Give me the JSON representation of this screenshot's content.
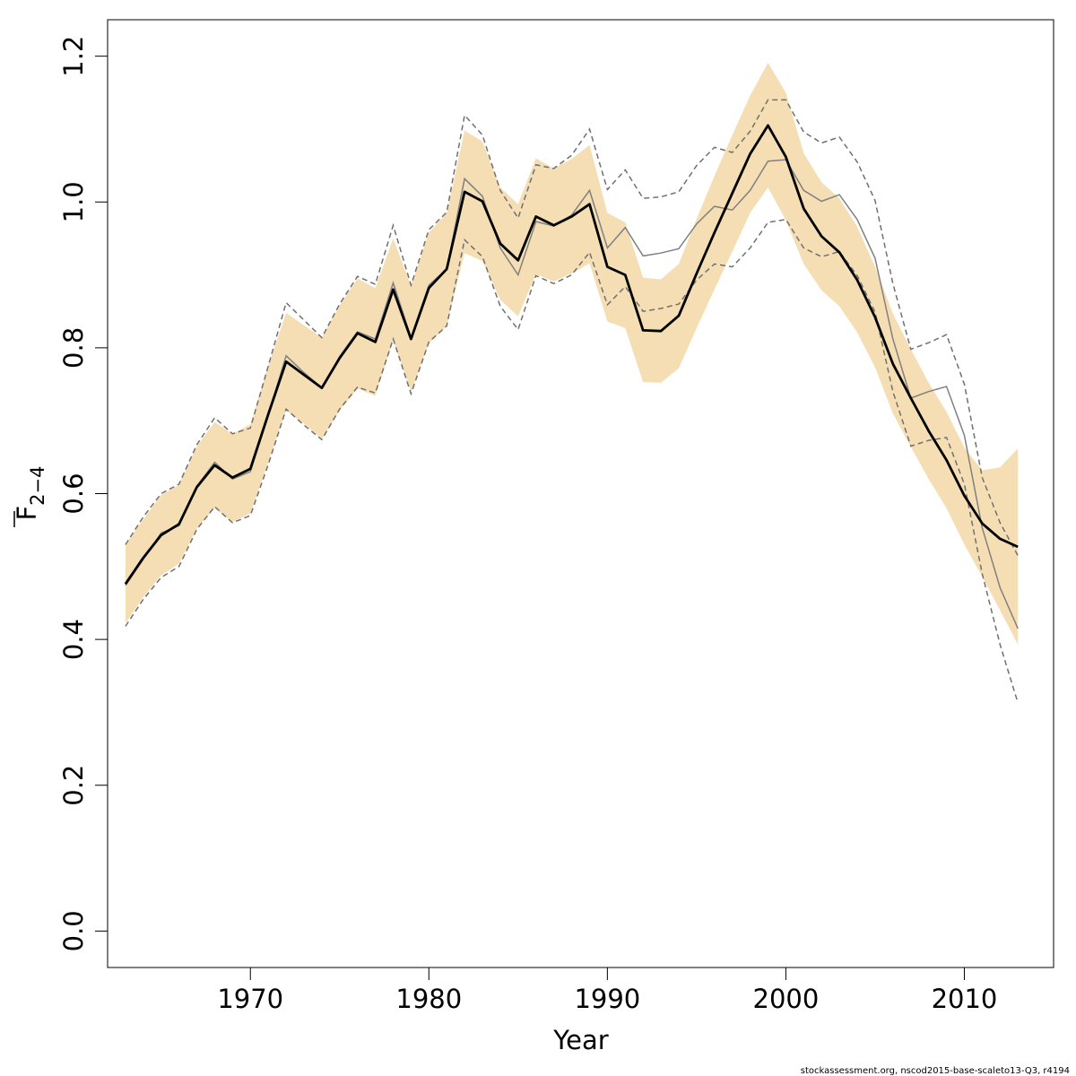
{
  "chart_data": {
    "type": "line",
    "title": "",
    "xlabel": "Year",
    "ylabel": {
      "main": "F",
      "subscript": "2−4"
    },
    "xlim": [
      1962,
      2015
    ],
    "ylim": [
      -0.05,
      1.25
    ],
    "x_ticks": [
      1970,
      1980,
      1990,
      2000,
      2010
    ],
    "y_ticks": [
      0.0,
      0.2,
      0.4,
      0.6,
      0.8,
      1.0,
      1.2
    ],
    "y_tick_labels": [
      "0.0",
      "0.2",
      "0.4",
      "0.6",
      "0.8",
      "1.0",
      "1.2"
    ],
    "colors": {
      "band": "#f5deb3",
      "estimate": "#000000",
      "comparison": "#808080",
      "comparison_ci": "#707070"
    },
    "years": [
      1963,
      1964,
      1965,
      1966,
      1967,
      1968,
      1969,
      1970,
      1971,
      1972,
      1973,
      1974,
      1975,
      1976,
      1977,
      1978,
      1979,
      1980,
      1981,
      1982,
      1983,
      1984,
      1985,
      1986,
      1987,
      1988,
      1989,
      1990,
      1991,
      1992,
      1993,
      1994,
      1995,
      1996,
      1997,
      1998,
      1999,
      2000,
      2001,
      2002,
      2003,
      2004,
      2005,
      2006,
      2007,
      2008,
      2009,
      2010,
      2011,
      2012,
      2013
    ],
    "series": [
      {
        "role": "confidence-band",
        "lower": [
          0.422,
          0.458,
          0.488,
          0.504,
          0.552,
          0.58,
          0.561,
          0.573,
          0.643,
          0.714,
          0.696,
          0.675,
          0.714,
          0.744,
          0.734,
          0.81,
          0.74,
          0.806,
          0.83,
          0.93,
          0.919,
          0.866,
          0.843,
          0.901,
          0.891,
          0.902,
          0.916,
          0.836,
          0.827,
          0.753,
          0.752,
          0.772,
          0.827,
          0.88,
          0.932,
          0.985,
          1.02,
          0.975,
          0.915,
          0.879,
          0.857,
          0.821,
          0.773,
          0.71,
          0.664,
          0.62,
          0.58,
          0.53,
          0.486,
          0.44,
          0.393
        ],
        "upper": [
          0.53,
          0.565,
          0.598,
          0.612,
          0.665,
          0.698,
          0.682,
          0.695,
          0.775,
          0.848,
          0.831,
          0.814,
          0.858,
          0.895,
          0.882,
          0.95,
          0.885,
          0.958,
          0.985,
          1.098,
          1.083,
          1.02,
          0.997,
          1.06,
          1.046,
          1.059,
          1.078,
          0.985,
          0.972,
          0.896,
          0.894,
          0.915,
          0.977,
          1.036,
          1.092,
          1.146,
          1.191,
          1.15,
          1.067,
          1.027,
          1.005,
          0.966,
          0.911,
          0.847,
          0.798,
          0.752,
          0.712,
          0.663,
          0.632,
          0.636,
          0.662
        ]
      },
      {
        "role": "estimate",
        "values": [
          0.476,
          0.512,
          0.543,
          0.558,
          0.609,
          0.639,
          0.622,
          0.634,
          0.709,
          0.781,
          0.763,
          0.745,
          0.786,
          0.82,
          0.808,
          0.88,
          0.812,
          0.882,
          0.908,
          1.014,
          1.001,
          0.943,
          0.92,
          0.98,
          0.968,
          0.98,
          0.997,
          0.911,
          0.9,
          0.824,
          0.823,
          0.844,
          0.902,
          0.958,
          1.012,
          1.066,
          1.105,
          1.062,
          0.991,
          0.953,
          0.931,
          0.893,
          0.842,
          0.778,
          0.731,
          0.686,
          0.646,
          0.597,
          0.559,
          0.538,
          0.527
        ]
      },
      {
        "role": "comparison",
        "values": [
          0.474,
          0.51,
          0.546,
          0.556,
          0.61,
          0.643,
          0.62,
          0.63,
          0.708,
          0.789,
          0.766,
          0.745,
          0.788,
          0.822,
          0.812,
          0.889,
          0.814,
          0.886,
          0.908,
          1.032,
          1.008,
          0.937,
          0.9,
          0.973,
          0.967,
          0.982,
          1.016,
          0.937,
          0.965,
          0.926,
          0.93,
          0.936,
          0.97,
          0.994,
          0.989,
          1.016,
          1.056,
          1.058,
          1.016,
          1.001,
          1.01,
          0.976,
          0.923,
          0.812,
          0.731,
          0.74,
          0.747,
          0.68,
          0.553,
          0.471,
          0.415
        ]
      },
      {
        "role": "comparison-lower",
        "values": [
          0.418,
          0.455,
          0.485,
          0.5,
          0.551,
          0.582,
          0.56,
          0.57,
          0.64,
          0.716,
          0.694,
          0.674,
          0.716,
          0.746,
          0.738,
          0.812,
          0.737,
          0.808,
          0.83,
          0.948,
          0.925,
          0.857,
          0.825,
          0.899,
          0.888,
          0.9,
          0.931,
          0.859,
          0.884,
          0.85,
          0.854,
          0.86,
          0.893,
          0.915,
          0.911,
          0.937,
          0.972,
          0.976,
          0.937,
          0.925,
          0.932,
          0.899,
          0.849,
          0.74,
          0.665,
          0.673,
          0.677,
          0.613,
          0.49,
          0.393,
          0.313
        ]
      },
      {
        "role": "comparison-upper",
        "values": [
          0.53,
          0.568,
          0.6,
          0.613,
          0.667,
          0.704,
          0.682,
          0.69,
          0.775,
          0.862,
          0.838,
          0.814,
          0.86,
          0.898,
          0.887,
          0.968,
          0.886,
          0.962,
          0.986,
          1.119,
          1.092,
          1.016,
          0.978,
          1.051,
          1.046,
          1.064,
          1.1,
          1.017,
          1.044,
          1.005,
          1.007,
          1.014,
          1.05,
          1.075,
          1.068,
          1.097,
          1.14,
          1.14,
          1.096,
          1.081,
          1.089,
          1.055,
          1.002,
          0.888,
          0.798,
          0.807,
          0.818,
          0.75,
          0.622,
          0.56,
          0.515
        ]
      }
    ]
  },
  "footer_text": "stockassessment.org, nscod2015-base-scaleto13-Q3, r4194"
}
